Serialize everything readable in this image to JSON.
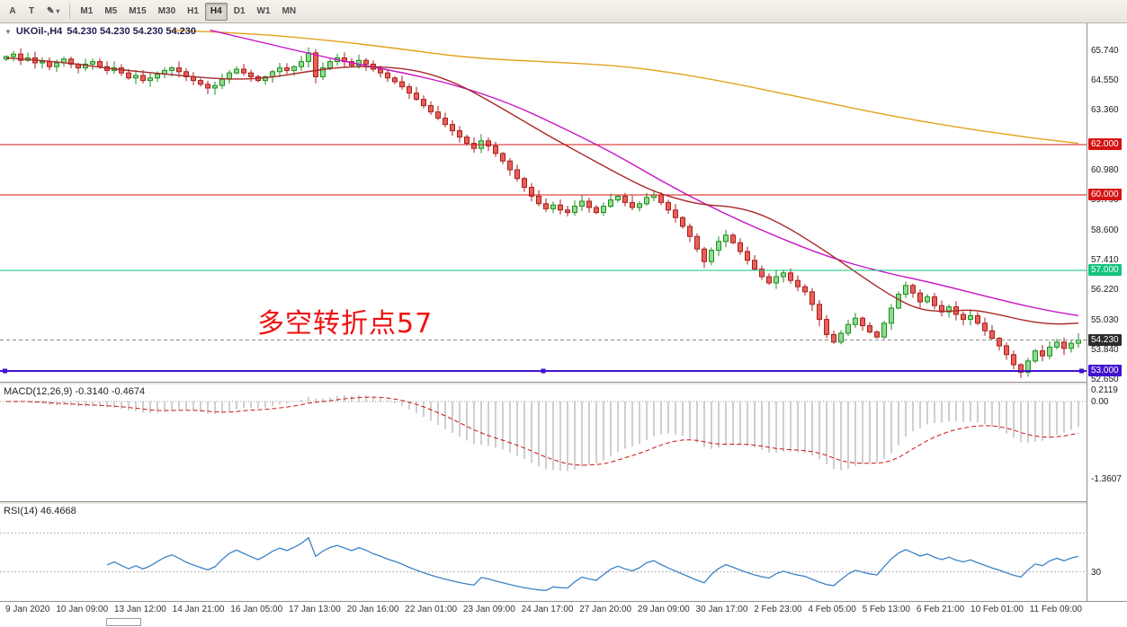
{
  "toolbar": {
    "tools": [
      "A",
      "T",
      "✎"
    ],
    "caret": "▾",
    "timeframes": [
      "M1",
      "M5",
      "M15",
      "M30",
      "H1",
      "H4",
      "D1",
      "W1",
      "MN"
    ],
    "active_timeframe": "H4"
  },
  "chart": {
    "collapse_arrow": "▼",
    "symbol_label": "UKOil-,H4",
    "ohlc_label": "54.230 54.230 54.230 54.230",
    "annotation": {
      "text": "多空转折点57"
    },
    "current_price": {
      "label": "54.230",
      "value": 54.23
    },
    "price_axis_labels": [
      {
        "text": "65.740",
        "value": 65.74
      },
      {
        "text": "64.550",
        "value": 64.55
      },
      {
        "text": "63.360",
        "value": 63.36
      },
      {
        "text": "60.980",
        "value": 60.98
      },
      {
        "text": "59.790",
        "value": 59.79
      },
      {
        "text": "58.600",
        "value": 58.6
      },
      {
        "text": "57.410",
        "value": 57.41
      },
      {
        "text": "56.220",
        "value": 56.22
      },
      {
        "text": "55.030",
        "value": 55.03
      },
      {
        "text": "53.840",
        "value": 53.84
      },
      {
        "text": "52.650",
        "value": 52.65
      }
    ],
    "hlines": [
      {
        "label": "62.000",
        "value": 62.0,
        "color": "#d41414",
        "thick": 1,
        "handles": false
      },
      {
        "label": "60.000",
        "value": 60.0,
        "color": "#d41414",
        "thick": 1,
        "handles": false
      },
      {
        "label": "57.000",
        "value": 57.0,
        "color": "#12c57c",
        "thick": 1,
        "handles": false
      },
      {
        "label": "53.000",
        "value": 53.0,
        "color": "#4013cf",
        "thick": 2,
        "handles": true
      }
    ]
  },
  "colors": {
    "up_fill": "#8fdc8f",
    "up_stroke": "#1e8c1e",
    "down_fill": "#e86057",
    "down_stroke": "#a81e1e",
    "bid_line": "#8a8a8a",
    "annotation": "#ee1010",
    "badge_current": "#2b2b2b",
    "macd_hist": "#b0aeae",
    "macd_signal": "#cc1414",
    "rsi_line": "#3c82c8",
    "level_line": "#b4b4b4"
  },
  "chart_data": {
    "type": "candlestick",
    "symbol": "UKOil-",
    "timeframe": "H4",
    "y_range": [
      52.57,
      66.82
    ],
    "closes": [
      65.5,
      65.6,
      65.35,
      65.45,
      65.25,
      65.3,
      65.1,
      65.25,
      65.4,
      65.2,
      65.05,
      65.2,
      65.3,
      65.1,
      64.95,
      65.05,
      64.85,
      64.65,
      64.75,
      64.55,
      64.65,
      64.8,
      64.95,
      65.05,
      64.9,
      64.7,
      64.55,
      64.4,
      64.25,
      64.35,
      64.6,
      64.85,
      65.0,
      64.85,
      64.7,
      64.55,
      64.7,
      64.9,
      65.05,
      64.95,
      65.1,
      65.3,
      65.65,
      64.7,
      65.05,
      65.3,
      65.45,
      65.3,
      65.15,
      65.35,
      65.2,
      65.0,
      64.85,
      64.65,
      64.5,
      64.3,
      64.05,
      63.8,
      63.55,
      63.3,
      63.05,
      62.8,
      62.55,
      62.3,
      62.05,
      61.85,
      62.15,
      61.95,
      61.65,
      61.35,
      61.0,
      60.65,
      60.3,
      59.95,
      59.65,
      59.45,
      59.6,
      59.4,
      59.3,
      59.55,
      59.75,
      59.5,
      59.3,
      59.55,
      59.8,
      59.95,
      59.7,
      59.5,
      59.65,
      59.9,
      60.0,
      59.7,
      59.4,
      59.1,
      58.75,
      58.35,
      57.85,
      57.35,
      57.8,
      58.15,
      58.4,
      58.1,
      57.75,
      57.4,
      57.05,
      56.75,
      56.5,
      56.75,
      56.9,
      56.6,
      56.35,
      56.15,
      55.65,
      55.05,
      54.45,
      54.15,
      54.5,
      54.85,
      55.1,
      54.8,
      54.55,
      54.35,
      54.9,
      55.5,
      56.05,
      56.4,
      56.1,
      55.75,
      55.95,
      55.6,
      55.35,
      55.55,
      55.25,
      55.05,
      55.2,
      54.9,
      54.6,
      54.3,
      54.0,
      53.65,
      53.25,
      52.95,
      53.4,
      53.8,
      53.6,
      53.95,
      54.15,
      53.9,
      54.1,
      54.23
    ],
    "moving_averages": [
      {
        "name": "ma-slow",
        "color": "#e2a21c",
        "points": [
          [
            0.15,
            66.55
          ],
          [
            0.22,
            66.45
          ],
          [
            0.3,
            66.15
          ],
          [
            0.36,
            65.85
          ],
          [
            0.43,
            65.45
          ],
          [
            0.5,
            65.3
          ],
          [
            0.58,
            65.12
          ],
          [
            0.66,
            64.6
          ],
          [
            0.75,
            63.8
          ],
          [
            0.83,
            63.1
          ],
          [
            0.9,
            62.6
          ],
          [
            0.96,
            62.25
          ],
          [
            1.0,
            62.05
          ]
        ]
      },
      {
        "name": "ma-mid",
        "color": "#c813c8",
        "points": [
          [
            0.19,
            66.55
          ],
          [
            0.25,
            65.95
          ],
          [
            0.29,
            65.55
          ],
          [
            0.33,
            65.18
          ],
          [
            0.375,
            64.82
          ],
          [
            0.42,
            64.36
          ],
          [
            0.47,
            63.64
          ],
          [
            0.515,
            62.75
          ],
          [
            0.565,
            61.7
          ],
          [
            0.615,
            60.45
          ],
          [
            0.665,
            59.35
          ],
          [
            0.715,
            58.4
          ],
          [
            0.765,
            57.55
          ],
          [
            0.815,
            56.95
          ],
          [
            0.865,
            56.5
          ],
          [
            0.915,
            55.95
          ],
          [
            0.965,
            55.45
          ],
          [
            1.0,
            55.2
          ]
        ]
      },
      {
        "name": "ma-fast",
        "color": "#a82828",
        "points": [
          [
            0.0,
            65.45
          ],
          [
            0.05,
            65.3
          ],
          [
            0.1,
            65.0
          ],
          [
            0.15,
            64.8
          ],
          [
            0.2,
            64.6
          ],
          [
            0.24,
            64.62
          ],
          [
            0.28,
            64.9
          ],
          [
            0.315,
            65.1
          ],
          [
            0.35,
            65.1
          ],
          [
            0.385,
            64.95
          ],
          [
            0.42,
            64.45
          ],
          [
            0.45,
            63.75
          ],
          [
            0.48,
            63.0
          ],
          [
            0.51,
            62.25
          ],
          [
            0.54,
            61.55
          ],
          [
            0.57,
            60.85
          ],
          [
            0.6,
            60.2
          ],
          [
            0.625,
            59.85
          ],
          [
            0.65,
            59.6
          ],
          [
            0.675,
            59.55
          ],
          [
            0.7,
            59.3
          ],
          [
            0.725,
            58.8
          ],
          [
            0.75,
            58.15
          ],
          [
            0.775,
            57.45
          ],
          [
            0.8,
            56.7
          ],
          [
            0.825,
            56.0
          ],
          [
            0.85,
            55.45
          ],
          [
            0.875,
            55.35
          ],
          [
            0.9,
            55.45
          ],
          [
            0.925,
            55.25
          ],
          [
            0.95,
            55.0
          ],
          [
            0.975,
            54.85
          ],
          [
            1.0,
            54.9
          ]
        ]
      }
    ],
    "macd": {
      "label": "MACD(12,26,9) -0.3140 -0.4674",
      "fast": 12,
      "slow": 26,
      "signal": 9,
      "axis": [
        {
          "text": "0.2119",
          "value": 0.2119
        },
        {
          "text": "0.00",
          "value": 0.0
        },
        {
          "text": "-1.3607",
          "value": -1.3607
        }
      ]
    },
    "rsi": {
      "label": "RSI(14) 46.4668",
      "period": 14,
      "levels": [
        70,
        30
      ],
      "axis": [
        {
          "text": "30",
          "value": 30
        }
      ]
    },
    "x_axis_labels": [
      "9 Jan 2020",
      "10 Jan 09:00",
      "13 Jan 12:00",
      "14 Jan 21:00",
      "16 Jan 05:00",
      "17 Jan 13:00",
      "20 Jan 16:00",
      "22 Jan 01:00",
      "23 Jan 09:00",
      "24 Jan 17:00",
      "27 Jan 20:00",
      "29 Jan 09:00",
      "30 Jan 17:00",
      "2 Feb 23:00",
      "4 Feb 05:00",
      "5 Feb 13:00",
      "6 Feb 21:00",
      "10 Feb 01:00",
      "11 Feb 09:00"
    ]
  }
}
